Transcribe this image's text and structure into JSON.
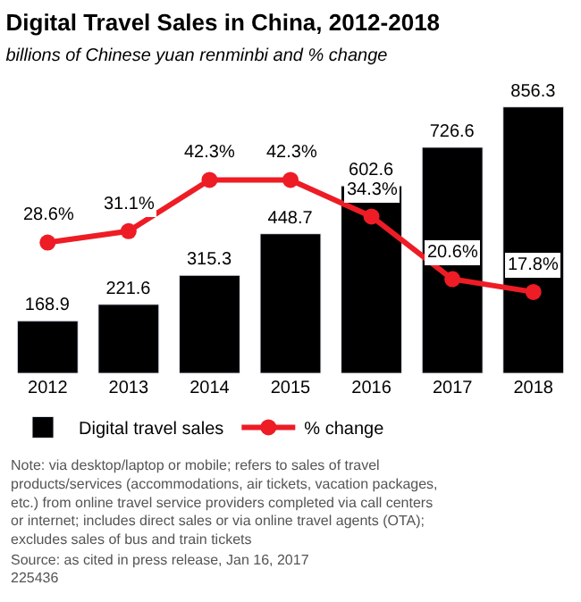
{
  "chart_data": {
    "type": "bar",
    "title": "Digital Travel Sales in China, 2012-2018",
    "subtitle": "billions of Chinese yuan renminbi and % change",
    "categories": [
      "2012",
      "2013",
      "2014",
      "2015",
      "2016",
      "2017",
      "2018"
    ],
    "series": [
      {
        "name": "Digital travel sales",
        "color": "#000000",
        "values": [
          168.9,
          221.6,
          315.3,
          448.7,
          602.6,
          726.6,
          856.3
        ]
      },
      {
        "name": "% change",
        "type": "line",
        "axis": "y2",
        "color": "#ee1c25",
        "marker": "circle",
        "values": [
          28.6,
          31.1,
          42.3,
          42.3,
          34.3,
          20.6,
          17.8
        ],
        "value_labels": [
          "28.6%",
          "31.1%",
          "42.3%",
          "42.3%",
          "34.3%",
          "20.6%",
          "17.8%"
        ]
      }
    ],
    "data_labels": true,
    "tick_labels": "x",
    "legend": "bottom left",
    "annotations": [
      "Note: via desktop/laptop or mobile; refers to sales of travel products/services (accommodations, air tickets, vacation packages, etc.) from online travel service providers completed via call centers or internet; includes direct sales or via online travel agents (OTA); excludes sales of bus and train tickets",
      "Source: as cited in press release, Jan 16, 2017",
      "225436"
    ]
  }
}
